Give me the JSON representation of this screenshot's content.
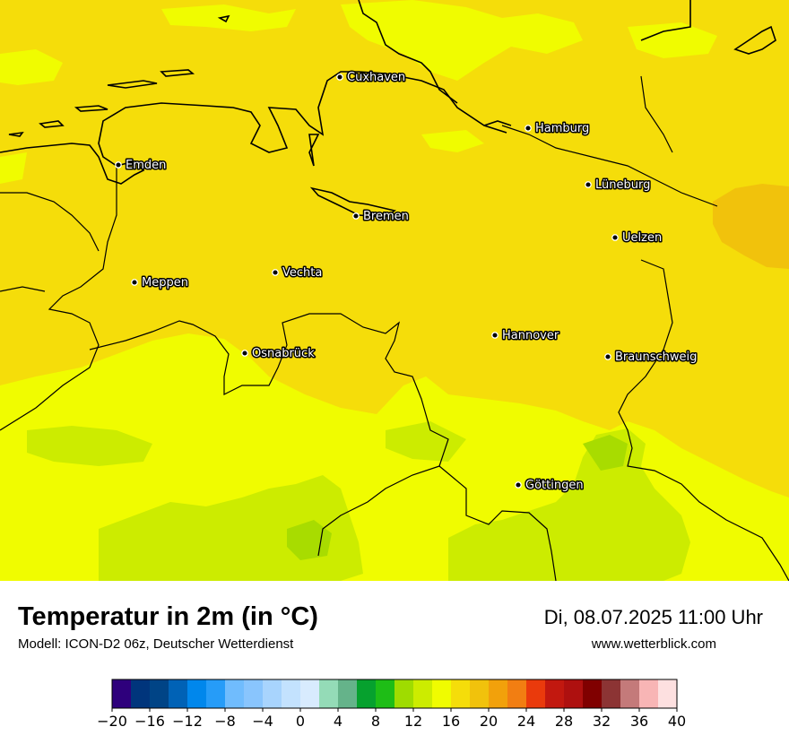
{
  "title": "Temperatur in 2m (in °C)",
  "model": "Modell: ICON-D2 06z, Deutscher Wetterdienst",
  "datetime": "Di, 08.07.2025 11:00 Uhr",
  "website": "www.wetterblick.com",
  "colors": {
    "t14": "#ccec00",
    "t16": "#f0fc00",
    "t18": "#f5dd0a",
    "t20": "#f1c20c",
    "coast": "#000000"
  },
  "cities": [
    {
      "name": "Cuxhaven"
    },
    {
      "name": "Hamburg"
    },
    {
      "name": "Emden"
    },
    {
      "name": "Lüneburg"
    },
    {
      "name": "Bremen"
    },
    {
      "name": "Uelzen"
    },
    {
      "name": "Vechta"
    },
    {
      "name": "Meppen"
    },
    {
      "name": "Hannover"
    },
    {
      "name": "Osnabrück"
    },
    {
      "name": "Braunschweig"
    },
    {
      "name": "Göttingen"
    }
  ],
  "legend": {
    "colors": [
      "#2e007c",
      "#00357c",
      "#004486",
      "#0062b6",
      "#0087ec",
      "#269cf8",
      "#70bcfd",
      "#89c5fd",
      "#a8d4fd",
      "#c3e2fe",
      "#d8ebfe",
      "#94dbb7",
      "#65b38a",
      "#06a12e",
      "#1ebd16",
      "#9fdc00",
      "#ccec00",
      "#f0fc00",
      "#f5dd0a",
      "#f1c20c",
      "#f2a10b",
      "#f27e12",
      "#ea3a0c",
      "#c2180f",
      "#ae100f",
      "#800000",
      "#8c3434",
      "#c47a7a",
      "#f8b5b5",
      "#fde0e0"
    ],
    "ticks": [
      "−20",
      "−16",
      "−12",
      "−8",
      "−4",
      "0",
      "4",
      "8",
      "12",
      "16",
      "20",
      "24",
      "28",
      "32",
      "36",
      "40"
    ]
  }
}
